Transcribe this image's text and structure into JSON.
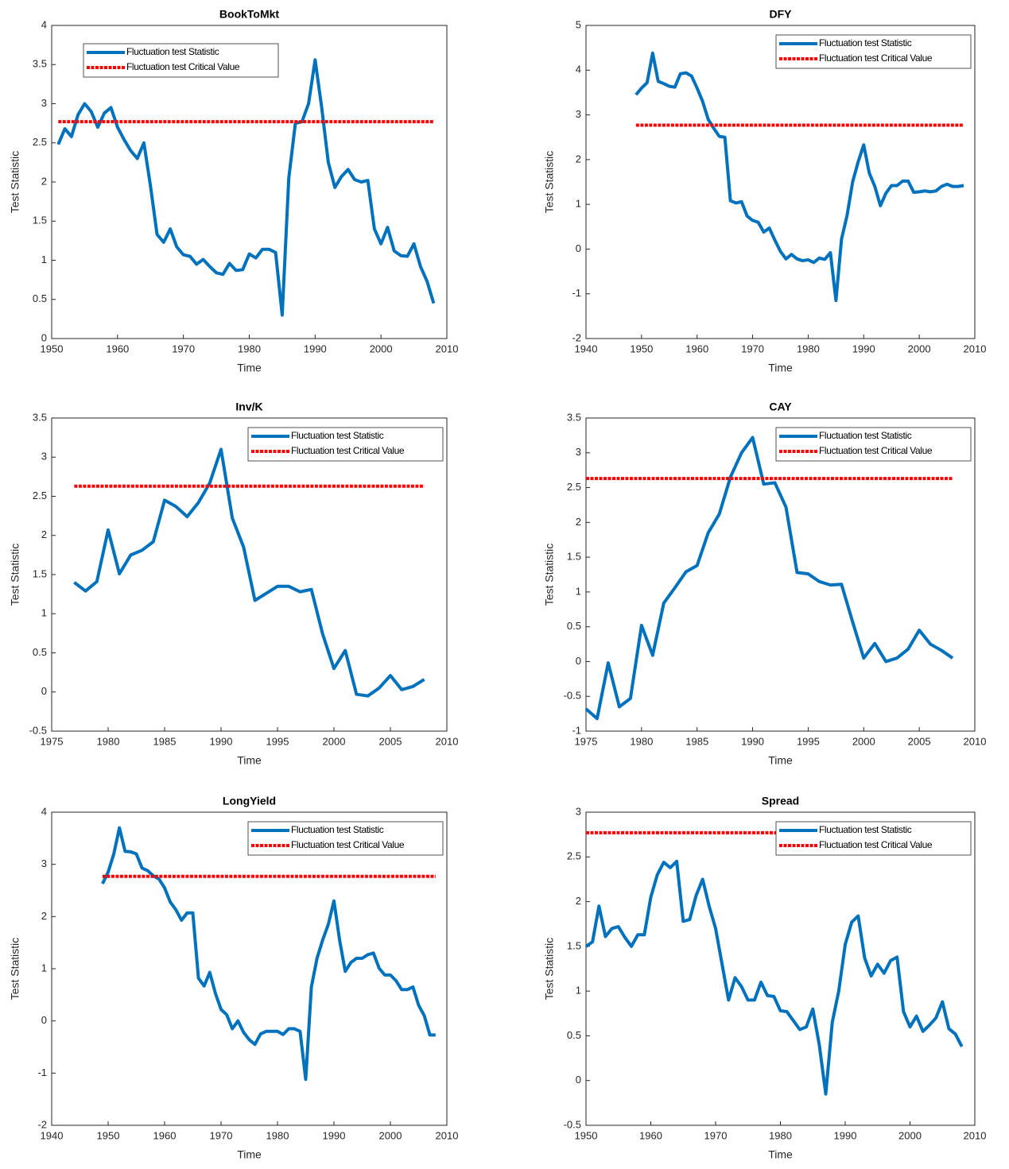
{
  "chart_data": [
    {
      "type": "line",
      "title": "BookToMkt",
      "xlabel": "Time",
      "ylabel": "Test Statistic",
      "legend": "upper left",
      "xlim": [
        1950,
        2010
      ],
      "xticks": [
        1950,
        1960,
        1970,
        1980,
        1990,
        2000,
        2010
      ],
      "ylim": [
        0,
        4
      ],
      "yticks": [
        0,
        0.5,
        1,
        1.5,
        2,
        2.5,
        3,
        3.5,
        4
      ],
      "x": [
        1951,
        1952,
        1953,
        1954,
        1955,
        1956,
        1957,
        1958,
        1959,
        1960,
        1961,
        1962,
        1963,
        1964,
        1965,
        1966,
        1967,
        1968,
        1969,
        1970,
        1971,
        1972,
        1973,
        1974,
        1975,
        1976,
        1977,
        1978,
        1979,
        1980,
        1981,
        1982,
        1983,
        1984,
        1985,
        1986,
        1987,
        1988,
        1989,
        1990,
        1991,
        1992,
        1993,
        1994,
        1995,
        1996,
        1997,
        1998,
        1999,
        2000,
        2001,
        2002,
        2003,
        2004,
        2005,
        2006,
        2007,
        2008
      ],
      "series": [
        {
          "name": "Fluctuation test Statistic",
          "color": "#0072bd",
          "values": [
            2.48,
            2.68,
            2.58,
            2.86,
            3.0,
            2.9,
            2.7,
            2.88,
            2.95,
            2.7,
            2.54,
            2.4,
            2.3,
            2.5,
            1.95,
            1.33,
            1.23,
            1.4,
            1.17,
            1.07,
            1.05,
            0.95,
            1.01,
            0.92,
            0.84,
            0.82,
            0.96,
            0.87,
            0.88,
            1.08,
            1.03,
            1.14,
            1.14,
            1.1,
            0.3,
            2.05,
            2.75,
            2.77,
            3.0,
            3.56,
            2.95,
            2.25,
            1.93,
            2.07,
            2.16,
            2.03,
            2.0,
            2.02,
            1.4,
            1.21,
            1.42,
            1.12,
            1.06,
            1.05,
            1.21,
            0.92,
            0.73,
            0.45
          ]
        },
        {
          "name": "Fluctuation test Critical Value",
          "color": "#ff0000",
          "value": 2.77
        }
      ]
    },
    {
      "type": "line",
      "title": "DFY",
      "xlabel": "Time",
      "ylabel": "Test Statistic",
      "legend": "upper right",
      "xlim": [
        1940,
        2010
      ],
      "xticks": [
        1940,
        1950,
        1960,
        1970,
        1980,
        1990,
        2000,
        2010
      ],
      "ylim": [
        -2,
        5
      ],
      "yticks": [
        -2,
        -1,
        0,
        1,
        2,
        3,
        4,
        5
      ],
      "x": [
        1949,
        1950,
        1951,
        1952,
        1953,
        1954,
        1955,
        1956,
        1957,
        1958,
        1959,
        1960,
        1961,
        1962,
        1963,
        1964,
        1965,
        1966,
        1967,
        1968,
        1969,
        1970,
        1971,
        1972,
        1973,
        1974,
        1975,
        1976,
        1977,
        1978,
        1979,
        1980,
        1981,
        1982,
        1983,
        1984,
        1985,
        1986,
        1987,
        1988,
        1989,
        1990,
        1991,
        1992,
        1993,
        1994,
        1995,
        1996,
        1997,
        1998,
        1999,
        2000,
        2001,
        2002,
        2003,
        2004,
        2005,
        2006,
        2007,
        2008
      ],
      "series": [
        {
          "name": "Fluctuation test Statistic",
          "color": "#0072bd",
          "values": [
            3.45,
            3.6,
            3.72,
            4.38,
            3.75,
            3.7,
            3.64,
            3.62,
            3.92,
            3.94,
            3.87,
            3.6,
            3.3,
            2.9,
            2.7,
            2.52,
            2.5,
            1.08,
            1.03,
            1.06,
            0.74,
            0.64,
            0.6,
            0.38,
            0.47,
            0.2,
            -0.05,
            -0.22,
            -0.12,
            -0.22,
            -0.26,
            -0.24,
            -0.3,
            -0.2,
            -0.23,
            -0.08,
            -1.15,
            0.22,
            0.75,
            1.5,
            1.95,
            2.33,
            1.7,
            1.4,
            0.97,
            1.25,
            1.42,
            1.42,
            1.52,
            1.52,
            1.27,
            1.28,
            1.3,
            1.28,
            1.3,
            1.4,
            1.45,
            1.4,
            1.4,
            1.42
          ]
        },
        {
          "name": "Fluctuation test Critical Value",
          "color": "#ff0000",
          "value": 2.77
        }
      ]
    },
    {
      "type": "line",
      "title": "Inv/K",
      "xlabel": "Time",
      "ylabel": "Test Statistic",
      "legend": "upper right",
      "xlim": [
        1975,
        2010
      ],
      "xticks": [
        1975,
        1980,
        1985,
        1990,
        1995,
        2000,
        2005,
        2010
      ],
      "ylim": [
        -0.5,
        3.5
      ],
      "yticks": [
        -0.5,
        0,
        0.5,
        1,
        1.5,
        2,
        2.5,
        3,
        3.5
      ],
      "x": [
        1977,
        1978,
        1979,
        1980,
        1981,
        1982,
        1983,
        1984,
        1985,
        1986,
        1987,
        1988,
        1989,
        1990,
        1991,
        1992,
        1993,
        1994,
        1995,
        1996,
        1997,
        1998,
        1999,
        2000,
        2001,
        2002,
        2003,
        2004,
        2005,
        2006,
        2007,
        2008
      ],
      "series": [
        {
          "name": "Fluctuation test Statistic",
          "color": "#0072bd",
          "values": [
            1.4,
            1.29,
            1.41,
            2.07,
            1.51,
            1.75,
            1.81,
            1.92,
            2.45,
            2.37,
            2.24,
            2.42,
            2.67,
            3.1,
            2.22,
            1.85,
            1.17,
            1.26,
            1.35,
            1.35,
            1.28,
            1.31,
            0.74,
            0.3,
            0.53,
            -0.03,
            -0.05,
            0.05,
            0.21,
            0.03,
            0.07,
            0.16
          ]
        },
        {
          "name": "Fluctuation test Critical Value",
          "color": "#ff0000",
          "value": 2.63
        }
      ]
    },
    {
      "type": "line",
      "title": "CAY",
      "xlabel": "Time",
      "ylabel": "Test Statistic",
      "legend": "upper right",
      "xlim": [
        1975,
        2010
      ],
      "xticks": [
        1975,
        1980,
        1985,
        1990,
        1995,
        2000,
        2005,
        2010
      ],
      "ylim": [
        -1,
        3.5
      ],
      "yticks": [
        -1,
        -0.5,
        0,
        0.5,
        1,
        1.5,
        2,
        2.5,
        3,
        3.5
      ],
      "x": [
        1975,
        1976,
        1977,
        1978,
        1979,
        1980,
        1981,
        1982,
        1983,
        1984,
        1985,
        1986,
        1987,
        1988,
        1989,
        1990,
        1991,
        1992,
        1993,
        1994,
        1995,
        1996,
        1997,
        1998,
        1999,
        2000,
        2001,
        2002,
        2003,
        2004,
        2005,
        2006,
        2007,
        2008
      ],
      "series": [
        {
          "name": "Fluctuation test Statistic",
          "color": "#0072bd",
          "values": [
            -0.68,
            -0.82,
            -0.02,
            -0.65,
            -0.53,
            0.52,
            0.09,
            0.84,
            1.06,
            1.29,
            1.38,
            1.85,
            2.12,
            2.65,
            3.0,
            3.22,
            2.55,
            2.57,
            2.22,
            1.28,
            1.26,
            1.15,
            1.1,
            1.11,
            0.57,
            0.05,
            0.26,
            0.0,
            0.05,
            0.18,
            0.45,
            0.25,
            0.16,
            0.05
          ]
        },
        {
          "name": "Fluctuation test Critical Value",
          "color": "#ff0000",
          "value": 2.63
        }
      ]
    },
    {
      "type": "line",
      "title": "LongYield",
      "xlabel": "Time",
      "ylabel": "Test Statistic",
      "legend": "upper right",
      "xlim": [
        1940,
        2010
      ],
      "xticks": [
        1940,
        1950,
        1960,
        1970,
        1980,
        1990,
        2000,
        2010
      ],
      "ylim": [
        -2,
        4
      ],
      "yticks": [
        -2,
        -1,
        0,
        1,
        2,
        3,
        4
      ],
      "x": [
        1949,
        1950,
        1951,
        1952,
        1953,
        1954,
        1955,
        1956,
        1957,
        1958,
        1959,
        1960,
        1961,
        1962,
        1963,
        1964,
        1965,
        1966,
        1967,
        1968,
        1969,
        1970,
        1971,
        1972,
        1973,
        1974,
        1975,
        1976,
        1977,
        1978,
        1979,
        1980,
        1981,
        1982,
        1983,
        1984,
        1985,
        1986,
        1987,
        1988,
        1989,
        1990,
        1991,
        1992,
        1993,
        1994,
        1995,
        1996,
        1997,
        1998,
        1999,
        2000,
        2001,
        2002,
        2003,
        2004,
        2005,
        2006,
        2007,
        2008
      ],
      "series": [
        {
          "name": "Fluctuation test Statistic",
          "color": "#0072bd",
          "values": [
            2.63,
            2.85,
            3.2,
            3.7,
            3.25,
            3.24,
            3.2,
            2.93,
            2.88,
            2.78,
            2.72,
            2.55,
            2.28,
            2.13,
            1.93,
            2.07,
            2.07,
            0.82,
            0.67,
            0.93,
            0.53,
            0.22,
            0.12,
            -0.15,
            0.0,
            -0.22,
            -0.36,
            -0.45,
            -0.25,
            -0.2,
            -0.2,
            -0.2,
            -0.26,
            -0.15,
            -0.15,
            -0.2,
            -1.12,
            0.65,
            1.2,
            1.55,
            1.85,
            2.3,
            1.55,
            0.95,
            1.12,
            1.2,
            1.2,
            1.27,
            1.3,
            1.01,
            0.88,
            0.88,
            0.77,
            0.6,
            0.6,
            0.65,
            0.3,
            0.1,
            -0.27,
            -0.27
          ]
        },
        {
          "name": "Fluctuation test Critical Value",
          "color": "#ff0000",
          "value": 2.77
        }
      ]
    },
    {
      "type": "line",
      "title": "Spread",
      "xlabel": "Time",
      "ylabel": "Test Statistic",
      "legend": "upper right",
      "xlim": [
        1950,
        2010
      ],
      "xticks": [
        1950,
        1960,
        1970,
        1980,
        1990,
        2000,
        2010
      ],
      "ylim": [
        -0.5,
        3
      ],
      "yticks": [
        -0.5,
        0,
        0.5,
        1,
        1.5,
        2,
        2.5,
        3
      ],
      "x": [
        1950,
        1951,
        1952,
        1953,
        1954,
        1955,
        1956,
        1957,
        1958,
        1959,
        1960,
        1961,
        1962,
        1963,
        1964,
        1965,
        1966,
        1967,
        1968,
        1969,
        1970,
        1971,
        1972,
        1973,
        1974,
        1975,
        1976,
        1977,
        1978,
        1979,
        1980,
        1981,
        1982,
        1983,
        1984,
        1985,
        1986,
        1987,
        1988,
        1989,
        1990,
        1991,
        1992,
        1993,
        1994,
        1995,
        1996,
        1997,
        1998,
        1999,
        2000,
        2001,
        2002,
        2003,
        2004,
        2005,
        2006,
        2007,
        2008
      ],
      "series": [
        {
          "name": "Fluctuation test Statistic",
          "color": "#0072bd",
          "values": [
            1.5,
            1.55,
            1.95,
            1.61,
            1.7,
            1.72,
            1.6,
            1.5,
            1.63,
            1.63,
            2.05,
            2.3,
            2.44,
            2.38,
            2.45,
            1.78,
            1.8,
            2.07,
            2.25,
            1.95,
            1.7,
            1.3,
            0.9,
            1.15,
            1.05,
            0.9,
            0.9,
            1.1,
            0.95,
            0.94,
            0.78,
            0.77,
            0.67,
            0.57,
            0.6,
            0.8,
            0.4,
            -0.15,
            0.65,
            1.0,
            1.52,
            1.77,
            1.84,
            1.37,
            1.17,
            1.3,
            1.2,
            1.34,
            1.38,
            0.77,
            0.6,
            0.72,
            0.55,
            0.62,
            0.7,
            0.88,
            0.58,
            0.52,
            0.38
          ]
        },
        {
          "name": "Fluctuation test Critical Value",
          "color": "#ff0000",
          "value": 2.77
        }
      ]
    }
  ]
}
